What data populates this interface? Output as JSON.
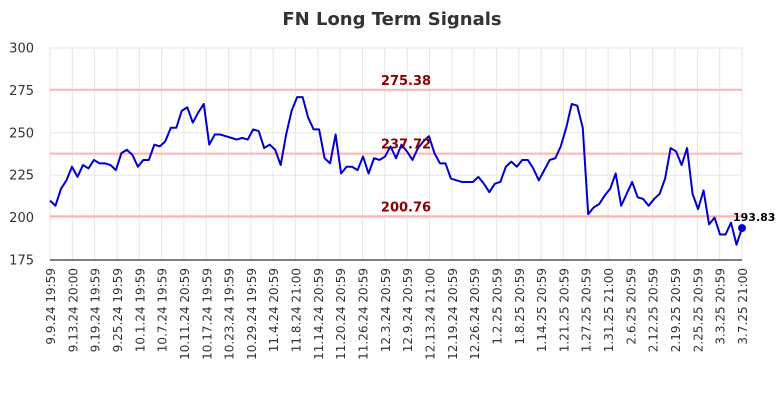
{
  "chart_data": {
    "type": "line",
    "title": "FN Long Term Signals",
    "ylim": [
      175,
      300
    ],
    "yticks": [
      175,
      200,
      225,
      250,
      275,
      300
    ],
    "grid": true,
    "x_tick_labels": [
      "9.9.24 19:59",
      "9.13.24 20:00",
      "9.19.24 19:59",
      "9.25.24 19:59",
      "10.1.24 19:59",
      "10.7.24 19:59",
      "10.11.24 20:59",
      "10.17.24 19:59",
      "10.23.24 19:59",
      "10.29.24 19:59",
      "11.4.24 20:59",
      "11.8.24 21:00",
      "11.14.24 20:59",
      "11.20.24 20:59",
      "11.26.24 20:59",
      "12.3.24 20:59",
      "12.9.24 20:59",
      "12.13.24 21:00",
      "12.19.24 20:59",
      "12.26.24 20:59",
      "1.2.25 20:59",
      "1.8.25 20:59",
      "1.14.25 20:59",
      "1.21.25 20:59",
      "1.27.25 20:59",
      "1.31.25 21:00",
      "2.6.25 20:59",
      "2.12.25 20:59",
      "2.19.25 20:59",
      "2.25.25 20:59",
      "3.3.25 20:59",
      "3.7.25 21:00"
    ],
    "signal_lines": [
      {
        "label": "275.38",
        "value": 275.38
      },
      {
        "label": "237.72",
        "value": 237.72
      },
      {
        "label": "200.76",
        "value": 200.76
      }
    ],
    "series": [
      {
        "color": "#0000cd",
        "values": [
          210,
          207,
          217,
          222,
          230,
          224,
          231,
          229,
          234,
          232,
          232,
          231,
          228,
          238,
          240,
          237,
          230,
          234,
          234,
          243,
          242,
          245,
          253,
          253,
          263,
          265,
          256,
          262,
          267,
          243,
          249,
          249,
          248,
          247,
          246,
          247,
          246,
          252,
          251,
          241,
          243,
          240,
          231,
          249,
          263,
          271,
          271,
          259,
          252,
          252,
          235,
          232,
          249,
          226,
          230,
          230,
          228,
          236,
          226,
          235,
          234,
          236,
          242,
          235,
          243,
          239,
          234,
          241,
          245,
          248,
          238,
          232,
          232,
          223,
          222,
          221,
          221,
          221,
          224,
          220,
          215,
          220,
          221,
          230,
          233,
          230,
          234,
          234,
          229,
          222,
          228,
          234,
          235,
          242,
          253,
          267,
          266,
          253,
          202,
          206,
          208,
          213,
          217,
          226,
          207,
          214,
          221,
          212,
          211,
          207,
          211,
          214,
          223,
          241,
          239,
          231,
          241,
          214,
          205,
          216,
          196,
          200,
          190,
          190,
          197,
          184,
          193.83
        ]
      }
    ],
    "last_value_label": "193.83"
  }
}
